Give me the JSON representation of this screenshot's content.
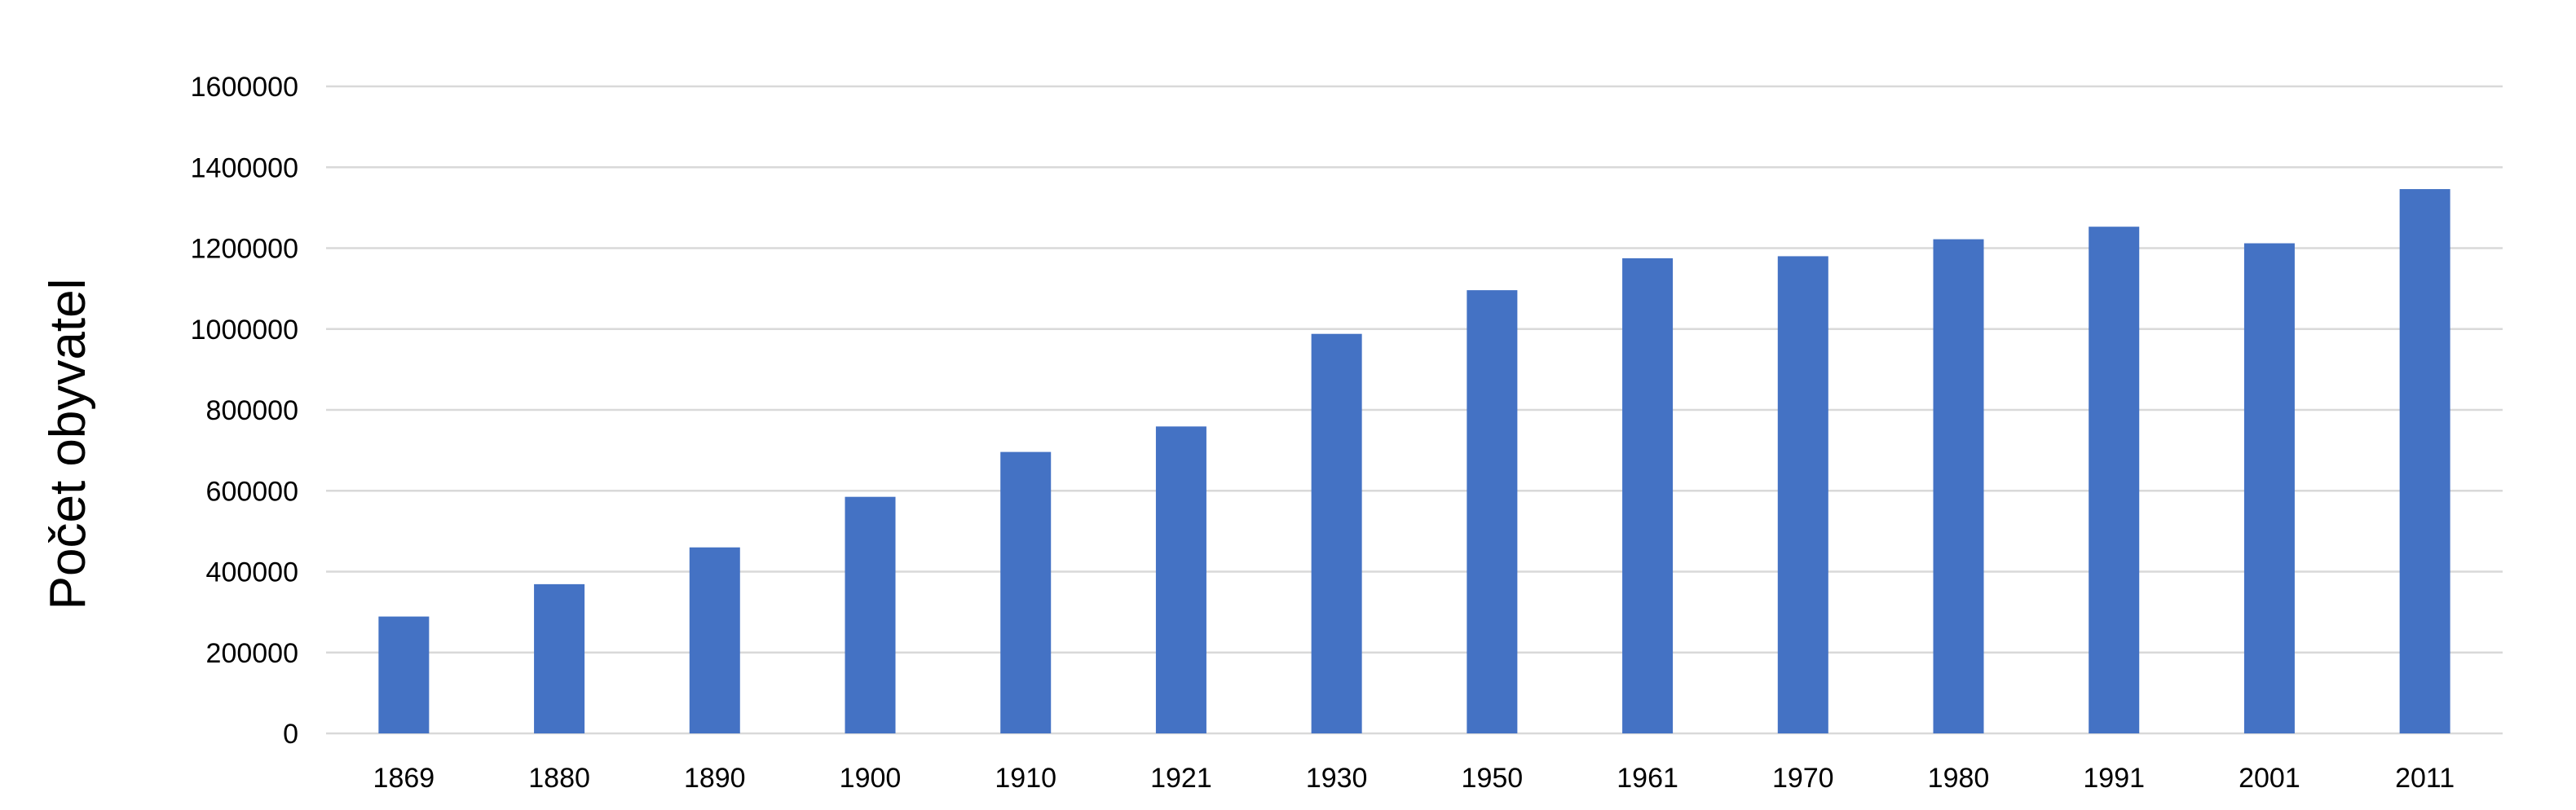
{
  "chart_data": {
    "type": "bar",
    "title": "",
    "xlabel": "",
    "ylabel": "Počet obyvatel",
    "categories": [
      "1869",
      "1880",
      "1890",
      "1900",
      "1910",
      "1921",
      "1930",
      "1950",
      "1961",
      "1970",
      "1980",
      "1991",
      "2001",
      "2011"
    ],
    "values": [
      289000,
      369000,
      460000,
      585000,
      696000,
      759000,
      988000,
      1096000,
      1175000,
      1180000,
      1222000,
      1253000,
      1212000,
      1346000
    ],
    "ylim": [
      0,
      1600000
    ],
    "yticks": [
      "0",
      "200000",
      "400000",
      "600000",
      "800000",
      "1000000",
      "1200000",
      "1400000",
      "1600000"
    ],
    "grid": true,
    "legend": "none",
    "colors": {
      "bar": "#4472c4",
      "grid": "#d9d9d9",
      "text": "#000000"
    }
  }
}
